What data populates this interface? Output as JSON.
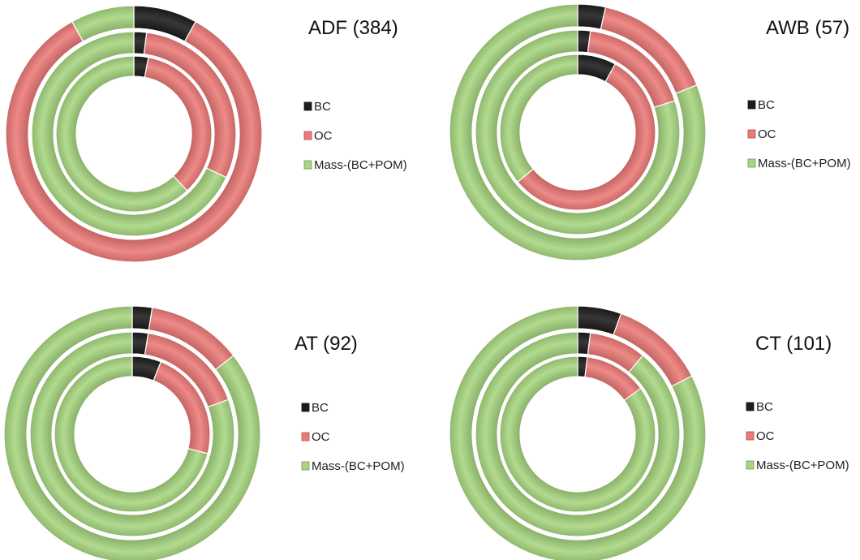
{
  "chart_data": [
    {
      "type": "pie",
      "title": "ADF (384)",
      "legend": [
        "BC",
        "OC",
        "Mass-(BC+POM)"
      ],
      "legend_position": "right",
      "categories": [
        "BC",
        "OC",
        "Mass-(BC+POM)"
      ],
      "colors": [
        "#1c1c1c",
        "#ec7a78",
        "#a8d680"
      ],
      "rings": [
        {
          "ring": "outer",
          "values": [
            8,
            84,
            8
          ]
        },
        {
          "ring": "middle",
          "values": [
            2,
            30,
            68
          ]
        },
        {
          "ring": "inner",
          "values": [
            3,
            35,
            62
          ]
        }
      ]
    },
    {
      "type": "pie",
      "title": "AWB (57)",
      "legend": [
        "BC",
        "OC",
        "Mass-(BC+POM)"
      ],
      "legend_position": "right",
      "categories": [
        "BC",
        "OC",
        "Mass-(BC+POM)"
      ],
      "colors": [
        "#1c1c1c",
        "#ec7a78",
        "#a8d680"
      ],
      "rings": [
        {
          "ring": "outer",
          "values": [
            3.5,
            15.5,
            81
          ]
        },
        {
          "ring": "middle",
          "values": [
            2,
            18,
            80
          ]
        },
        {
          "ring": "inner",
          "values": [
            8,
            56,
            36
          ]
        }
      ]
    },
    {
      "type": "pie",
      "title": "AT (92)",
      "legend": [
        "BC",
        "OC",
        "Mass-(BC+POM)"
      ],
      "legend_position": "right",
      "categories": [
        "BC",
        "OC",
        "Mass-(BC+POM)"
      ],
      "colors": [
        "#1c1c1c",
        "#ec7a78",
        "#a8d680"
      ],
      "rings": [
        {
          "ring": "outer",
          "values": [
            2.5,
            12,
            85.5
          ]
        },
        {
          "ring": "middle",
          "values": [
            2.5,
            17,
            80.5
          ]
        },
        {
          "ring": "inner",
          "values": [
            6,
            23,
            71
          ]
        }
      ]
    },
    {
      "type": "pie",
      "title": "CT (101)",
      "legend": [
        "BC",
        "OC",
        "Mass-(BC+POM)"
      ],
      "legend_position": "right",
      "categories": [
        "BC",
        "OC",
        "Mass-(BC+POM)"
      ],
      "colors": [
        "#1c1c1c",
        "#ec7a78",
        "#a8d680"
      ],
      "rings": [
        {
          "ring": "outer",
          "values": [
            5.5,
            12,
            82.5
          ]
        },
        {
          "ring": "middle",
          "values": [
            2,
            9,
            89
          ]
        },
        {
          "ring": "inner",
          "values": [
            2,
            13,
            85
          ]
        }
      ]
    }
  ]
}
